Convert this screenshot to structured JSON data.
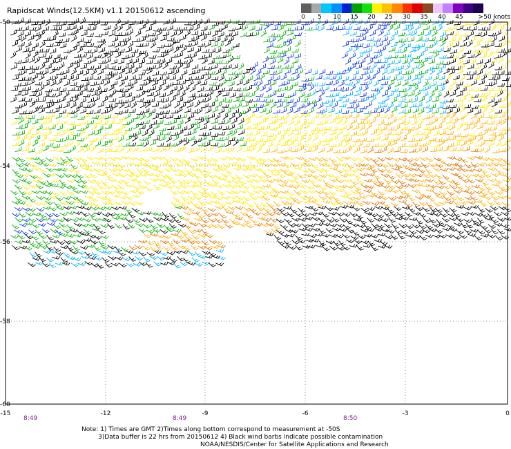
{
  "title": "Rapidscat Winds(12.5KM) v1.1 20150612 ascending",
  "legend": {
    "labels": [
      "0",
      "5",
      "10",
      "15",
      "20",
      "25",
      "30",
      "35",
      "40",
      "45",
      ">50 knots"
    ],
    "colors": [
      "#606060",
      "#a8a8a8",
      "#00c8ff",
      "#0090ff",
      "#0020d8",
      "#00a000",
      "#10e010",
      "#fff200",
      "#ffc000",
      "#ff8800",
      "#ff3000",
      "#e00000",
      "#8a4a20",
      "#e8c8ff",
      "#c080ff",
      "#8000c0",
      "#40008a",
      "#200050"
    ]
  },
  "axes": {
    "lat_labels": [
      "-50",
      "-54",
      "-56",
      "-58",
      "-60"
    ],
    "lon_labels": [
      "-15",
      "-12",
      "-9",
      "-6",
      "-3",
      "0"
    ]
  },
  "times": [
    "8:49",
    "8:49",
    "8:50"
  ],
  "notes": {
    "line1": "Note: 1) Times are GMT 2)Times along bottom correspond to measurement at -50S",
    "line2": "3)Data buffer is 22 hrs from 20150612 4) Black wind barbs indicate possible contamination",
    "line3": "NOAA/NESDIS/Center for Satellite Applications and Research"
  },
  "barb_colors": {
    "contaminated": "#000000",
    "low": "#00b0ff",
    "mid_blue": "#1030e0",
    "green": "#00b000",
    "yellow": "#ffe600",
    "orange": "#ffb000",
    "dark_orange": "#e07000"
  }
}
